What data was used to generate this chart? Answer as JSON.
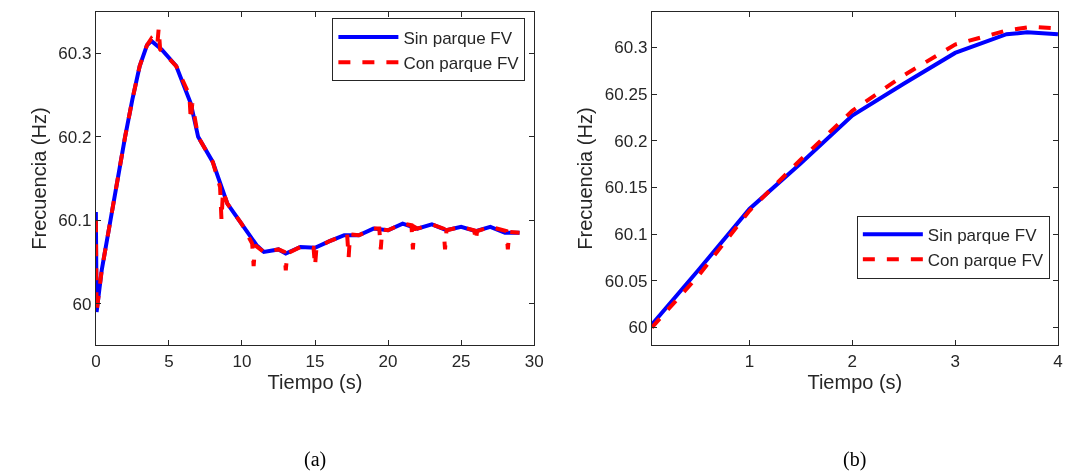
{
  "chart_data": [
    {
      "type": "line",
      "xlabel": "Tiempo (s)",
      "ylabel": "Frecuencia (Hz)",
      "xlim": [
        0,
        30
      ],
      "ylim": [
        59.95,
        60.35
      ],
      "xticks": [
        0,
        5,
        10,
        15,
        20,
        25,
        30
      ],
      "yticks": [
        60,
        60.1,
        60.2,
        60.3
      ],
      "legend": "top right",
      "annotations": [
        "(a)"
      ],
      "series": [
        {
          "name": "Sin parque FV",
          "color": "#0000ff",
          "line_style": "solid",
          "x": [
            0,
            0.05,
            0.4,
            1,
            1.5,
            2,
            2.5,
            3,
            3.5,
            3.8,
            4.5,
            5.5,
            6.5,
            7,
            8,
            9,
            10,
            11,
            11.5,
            12.5,
            13,
            14,
            15,
            16,
            17,
            18,
            19,
            20,
            21,
            22,
            23,
            24,
            25,
            26,
            27,
            28,
            29
          ],
          "values": [
            60.11,
            59.99,
            60.04,
            60.1,
            60.15,
            60.2,
            60.245,
            60.285,
            60.31,
            60.315,
            60.305,
            60.285,
            60.24,
            60.2,
            60.17,
            60.12,
            60.095,
            60.07,
            60.062,
            60.065,
            60.06,
            60.068,
            60.067,
            60.075,
            60.082,
            60.082,
            60.09,
            60.088,
            60.096,
            60.09,
            60.095,
            60.088,
            60.092,
            60.087,
            60.092,
            60.085,
            60.085
          ]
        },
        {
          "name": "Con parque FV",
          "color": "#ff0000",
          "line_style": "dashed",
          "x": [
            0,
            0.05,
            0.4,
            1,
            1.5,
            2,
            2.5,
            3,
            3.5,
            3.8,
            4.2,
            4.3,
            4.4,
            5.5,
            6.4,
            6.5,
            6.6,
            7,
            8,
            8.5,
            8.6,
            8.7,
            9,
            10,
            10.7,
            10.8,
            10.9,
            11.5,
            12.5,
            12.9,
            13,
            13.1,
            14,
            14.9,
            15,
            15.1,
            16,
            17.2,
            17.3,
            17.4,
            18,
            19,
            19.4,
            19.5,
            19.6,
            20,
            21,
            21.6,
            21.7,
            21.8,
            22,
            23,
            23.8,
            23.9,
            24,
            25,
            25.9,
            26,
            26.1,
            27,
            28.1,
            28.2,
            28.3,
            29
          ],
          "values": [
            60.1,
            59.99,
            60.04,
            60.1,
            60.15,
            60.2,
            60.245,
            60.285,
            60.31,
            60.318,
            60.31,
            60.33,
            60.305,
            60.285,
            60.25,
            60.22,
            60.24,
            60.2,
            60.17,
            60.14,
            60.1,
            60.135,
            60.12,
            60.095,
            60.072,
            60.045,
            60.07,
            60.062,
            60.065,
            60.062,
            60.04,
            60.06,
            60.068,
            60.067,
            60.045,
            60.067,
            60.075,
            60.083,
            60.055,
            60.083,
            60.082,
            60.09,
            60.09,
            60.065,
            60.089,
            60.088,
            60.096,
            60.094,
            60.065,
            60.092,
            60.09,
            60.095,
            60.09,
            60.065,
            60.088,
            60.092,
            60.088,
            60.075,
            60.087,
            60.092,
            60.087,
            60.065,
            60.086,
            60.085
          ]
        }
      ]
    },
    {
      "type": "line",
      "xlabel": "Tiempo (s)",
      "ylabel": "Frecuencia (Hz)",
      "xlim": [
        0.05,
        4
      ],
      "ylim": [
        59.981,
        60.338
      ],
      "xticks": [
        1,
        2,
        3,
        4
      ],
      "yticks": [
        60,
        60.05,
        60.1,
        60.15,
        60.2,
        60.25,
        60.3
      ],
      "legend": "bottom right",
      "annotations": [
        "(b)"
      ],
      "series": [
        {
          "name": "Sin parque FV",
          "color": "#0000ff",
          "line_style": "solid",
          "x": [
            0.05,
            0.5,
            1,
            1.5,
            2,
            2.5,
            3,
            3.5,
            3.7,
            4
          ],
          "values": [
            60.003,
            60.061,
            60.127,
            60.176,
            60.227,
            60.261,
            60.294,
            60.314,
            60.316,
            60.314
          ]
        },
        {
          "name": "Con parque FV",
          "color": "#ff0000",
          "line_style": "dashed",
          "x": [
            0.05,
            0.5,
            1,
            1.5,
            2,
            2.5,
            3,
            3.5,
            3.75,
            4
          ],
          "values": [
            60.0,
            60.055,
            60.125,
            60.18,
            60.232,
            60.27,
            60.303,
            60.318,
            60.322,
            60.32
          ]
        }
      ]
    }
  ]
}
